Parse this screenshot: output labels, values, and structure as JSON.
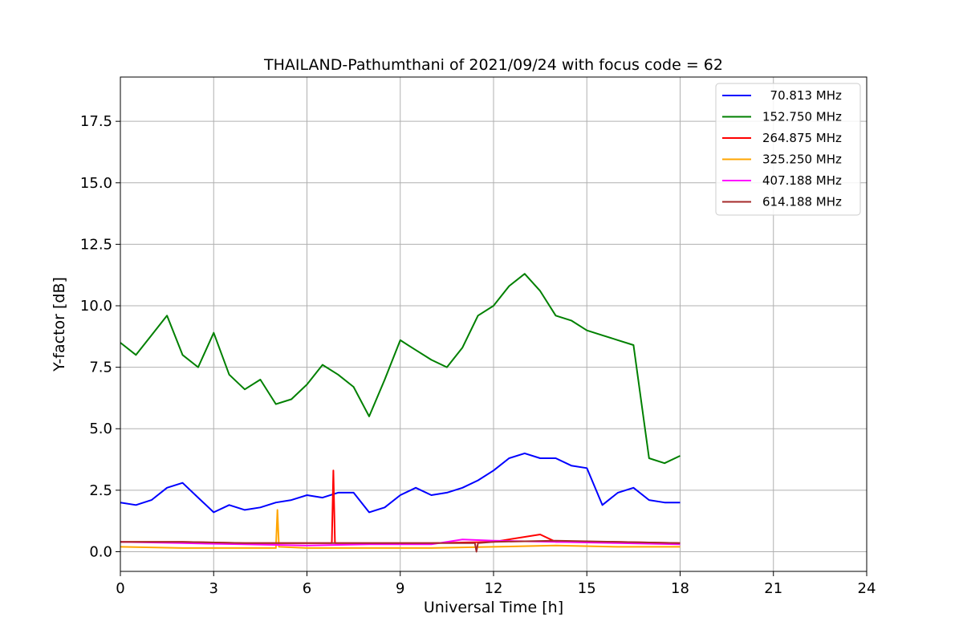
{
  "chart_data": {
    "type": "line",
    "title": "THAILAND-Pathumthani of 2021/09/24 with focus code = 62",
    "xlabel": "Universal Time [h]",
    "ylabel": "Y-factor [dB]",
    "xlim": [
      0,
      24
    ],
    "ylim": [
      -0.8,
      19.3
    ],
    "xticks": [
      0,
      3,
      6,
      9,
      12,
      15,
      18,
      21,
      24
    ],
    "xtick_labels": [
      "0",
      "3",
      "6",
      "9",
      "12",
      "15",
      "18",
      "21",
      "24"
    ],
    "yticks": [
      0.0,
      2.5,
      5.0,
      7.5,
      10.0,
      12.5,
      15.0,
      17.5
    ],
    "ytick_labels": [
      "0.0",
      "2.5",
      "5.0",
      "7.5",
      "10.0",
      "12.5",
      "15.0",
      "17.5"
    ],
    "grid": true,
    "legend_position": "upper-right",
    "series": [
      {
        "name": "  70.813 MHz",
        "color": "#0000ff",
        "x": [
          0,
          0.5,
          1,
          1.5,
          2,
          2.5,
          3,
          3.5,
          4,
          4.5,
          5,
          5.5,
          6,
          6.5,
          7,
          7.5,
          8,
          8.5,
          9,
          9.5,
          10,
          10.5,
          11,
          11.5,
          12,
          12.5,
          13,
          13.5,
          14,
          14.5,
          15,
          15.5,
          16,
          16.5,
          17,
          17.5,
          18
        ],
        "y": [
          2.0,
          1.9,
          2.1,
          2.6,
          2.8,
          2.2,
          1.6,
          1.9,
          1.7,
          1.8,
          2.0,
          2.1,
          2.3,
          2.2,
          2.4,
          2.4,
          1.6,
          1.8,
          2.3,
          2.6,
          2.3,
          2.4,
          2.6,
          2.9,
          3.3,
          3.8,
          4.0,
          3.8,
          3.8,
          3.5,
          3.4,
          1.9,
          2.4,
          2.6,
          2.1,
          2.0,
          2.0
        ]
      },
      {
        "name": "152.750 MHz",
        "color": "#008000",
        "x": [
          0,
          0.5,
          1,
          1.5,
          2,
          2.5,
          3,
          3.5,
          4,
          4.5,
          5,
          5.5,
          6,
          6.5,
          7,
          7.5,
          8,
          8.5,
          9,
          9.5,
          10,
          10.5,
          11,
          11.5,
          12,
          12.5,
          13,
          13.5,
          14,
          14.5,
          15,
          15.5,
          16,
          16.5,
          17,
          17.5,
          18
        ],
        "y": [
          8.5,
          8.0,
          8.8,
          9.6,
          8.0,
          7.5,
          8.9,
          7.2,
          6.6,
          7.0,
          6.0,
          6.2,
          6.8,
          7.6,
          7.2,
          6.7,
          5.5,
          7.0,
          8.6,
          8.2,
          7.8,
          7.5,
          8.3,
          9.6,
          10.0,
          10.8,
          11.3,
          10.6,
          9.6,
          9.4,
          9.0,
          8.8,
          8.6,
          8.4,
          3.8,
          3.6,
          3.9
        ]
      },
      {
        "name": "264.875 MHz",
        "color": "#ff0000",
        "x": [
          0,
          2,
          4,
          6,
          6.8,
          6.85,
          6.9,
          8,
          10,
          12,
          13.5,
          14,
          16,
          18
        ],
        "y": [
          0.4,
          0.4,
          0.35,
          0.35,
          0.35,
          3.3,
          0.35,
          0.35,
          0.35,
          0.4,
          0.7,
          0.4,
          0.4,
          0.35
        ]
      },
      {
        "name": "325.250 MHz",
        "color": "#ffa500",
        "x": [
          0,
          2,
          4,
          5.0,
          5.05,
          5.1,
          6,
          8,
          10,
          12,
          14,
          16,
          18
        ],
        "y": [
          0.2,
          0.15,
          0.15,
          0.15,
          1.7,
          0.2,
          0.15,
          0.15,
          0.15,
          0.2,
          0.25,
          0.2,
          0.2
        ]
      },
      {
        "name": "407.188 MHz",
        "color": "#ff00ff",
        "x": [
          0,
          2,
          4,
          6,
          8,
          10,
          11,
          12,
          14,
          16,
          18
        ],
        "y": [
          0.4,
          0.35,
          0.3,
          0.25,
          0.3,
          0.3,
          0.5,
          0.45,
          0.4,
          0.35,
          0.3
        ]
      },
      {
        "name": "614.188 MHz",
        "color": "#a52a2a",
        "x": [
          0,
          2,
          4,
          6,
          8,
          10,
          11.4,
          11.45,
          11.5,
          12,
          14,
          16,
          18
        ],
        "y": [
          0.4,
          0.4,
          0.35,
          0.35,
          0.35,
          0.35,
          0.35,
          0.0,
          0.35,
          0.4,
          0.45,
          0.4,
          0.35
        ]
      }
    ]
  }
}
